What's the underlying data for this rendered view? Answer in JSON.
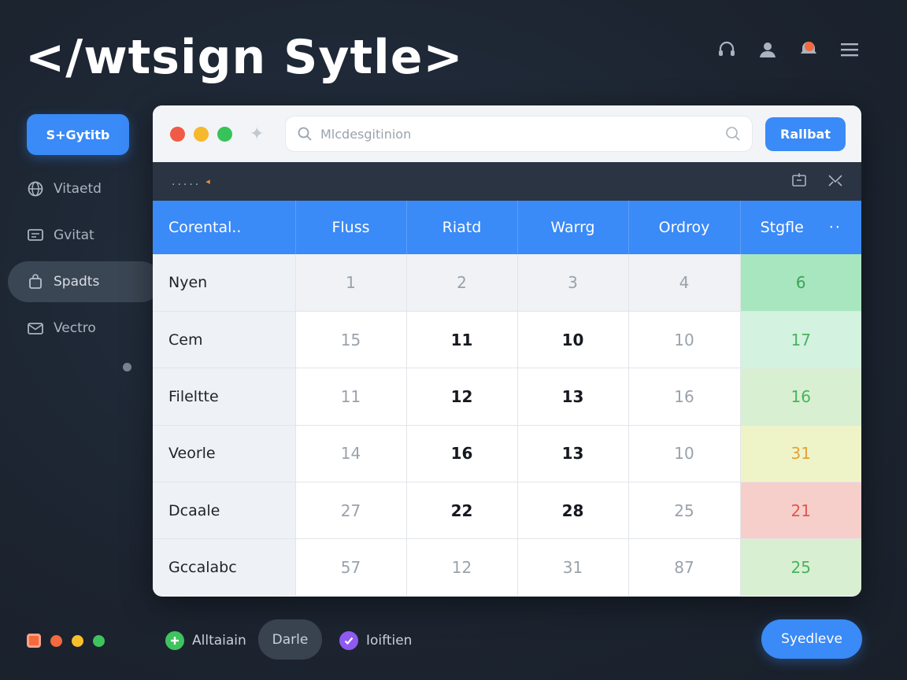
{
  "app": {
    "title": "</wtsign Sytle>"
  },
  "colors": {
    "accent": "#3a8af7",
    "traffic_red": "#f05a47",
    "traffic_yellow": "#f6b82c",
    "traffic_green": "#38c25a",
    "cell_green": "#a8e6bf",
    "cell_green_light": "#d3f2df",
    "cell_green_pale": "#d8efd2",
    "cell_yellow": "#eff3c8",
    "cell_red": "#f6cfcb",
    "text_green": "#49b35f",
    "text_orange": "#e2a23a",
    "text_red": "#e0574a"
  },
  "top_icons": [
    "headset-icon",
    "user-icon",
    "notification-badge-icon",
    "menu-icon"
  ],
  "sidebar": {
    "primary_label": "S+Gytitb",
    "items": [
      {
        "label": "Vitaetd",
        "icon": "globe-icon"
      },
      {
        "label": "Gvitat",
        "icon": "monitor-icon"
      },
      {
        "label": "Spadts",
        "icon": "bag-icon"
      },
      {
        "label": "Vectro",
        "icon": "mail-icon"
      }
    ]
  },
  "window": {
    "search_placeholder": "Mlcdesgitinion",
    "action_label": "Rallbat",
    "toolbar_dots": ".....",
    "toolbar_caret": "◂"
  },
  "table": {
    "headers": [
      "Corental..",
      "Fluss",
      "Riatd",
      "Warrg",
      "Ordroy",
      "Stgfle"
    ],
    "header_more": "··",
    "rows": [
      {
        "label": "Nyen",
        "cells": [
          "1",
          "2",
          "3",
          "4"
        ],
        "last": "6",
        "tone": "green"
      },
      {
        "label": "Cem",
        "cells": [
          "15",
          "11",
          "10",
          "10"
        ],
        "last": "17",
        "tone": "green_light"
      },
      {
        "label": "Fileltte",
        "cells": [
          "11",
          "12",
          "13",
          "16"
        ],
        "last": "16",
        "tone": "green_pale"
      },
      {
        "label": "Veorle",
        "cells": [
          "14",
          "16",
          "13",
          "10"
        ],
        "last": "31",
        "tone": "yellow"
      },
      {
        "label": "Dcaale",
        "cells": [
          "27",
          "22",
          "28",
          "25"
        ],
        "last": "21",
        "tone": "red"
      },
      {
        "label": "Gccalabc",
        "cells": [
          "57",
          "12",
          "31",
          "87"
        ],
        "last": "25",
        "tone": "green_pale"
      }
    ]
  },
  "footer": {
    "add_label": "Alltaiain",
    "pill_label": "Darle",
    "check_label": "Ioiftien",
    "primary_label": "Syedleve"
  }
}
